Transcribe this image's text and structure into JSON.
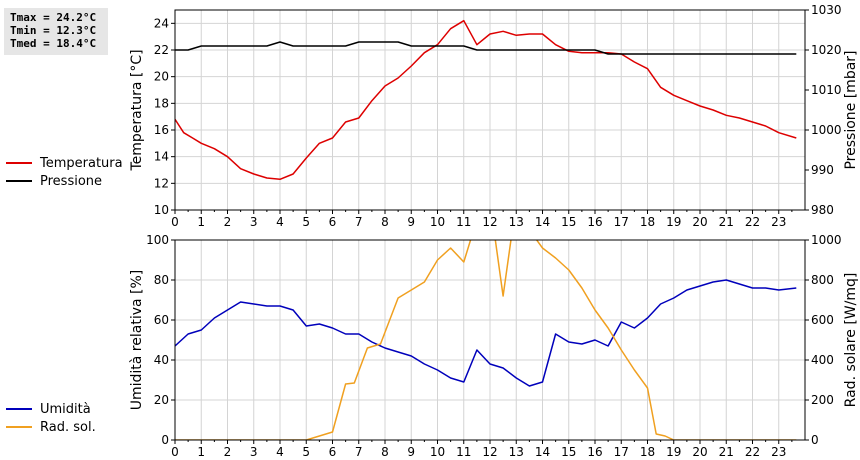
{
  "stats": {
    "tmax": "Tmax = 24.2°C",
    "tmin": "Tmin = 12.3°C",
    "tmed": "Tmed = 18.4°C"
  },
  "colors": {
    "temperatura": "#dd0000",
    "pressione": "#000000",
    "umidita": "#0000bb",
    "rad_sol": "#f0a020"
  },
  "chart_data": [
    {
      "type": "line",
      "xlim": [
        0,
        24
      ],
      "x_ticks": [
        "0",
        "1",
        "2",
        "3",
        "4",
        "5",
        "6",
        "7",
        "8",
        "9",
        "10",
        "11",
        "12",
        "13",
        "14",
        "15",
        "16",
        "17",
        "18",
        "19",
        "20",
        "21",
        "22",
        "23"
      ],
      "ylabel": "Temperatura [°C]",
      "ylim": [
        10,
        25
      ],
      "y_ticks": [
        "10",
        "12",
        "14",
        "16",
        "18",
        "20",
        "22",
        "24"
      ],
      "y2label": "Pressione [mbar]",
      "y2lim": [
        980,
        1030
      ],
      "y2_ticks": [
        "980",
        "990",
        "1000",
        "1010",
        "1020",
        "1030"
      ],
      "grid": true,
      "legend_position": "left",
      "series": [
        {
          "name": "Temperatura",
          "axis": "left",
          "x": [
            0,
            0.33,
            0.67,
            1,
            1.5,
            2,
            2.5,
            3,
            3.5,
            4,
            4.5,
            5,
            5.5,
            6,
            6.5,
            7,
            7.5,
            8,
            8.5,
            9,
            9.5,
            10,
            10.5,
            11,
            11.5,
            12,
            12.5,
            13,
            13.5,
            14,
            14.5,
            15,
            15.5,
            16,
            16.5,
            17,
            17.5,
            18,
            18.5,
            19,
            19.5,
            20,
            20.5,
            21,
            21.5,
            22,
            22.5,
            23,
            23.67
          ],
          "values": [
            16.8,
            15.8,
            15.4,
            15.0,
            14.6,
            14.0,
            13.1,
            12.7,
            12.4,
            12.3,
            12.7,
            13.9,
            15.0,
            15.4,
            16.6,
            16.9,
            18.2,
            19.3,
            19.9,
            20.8,
            21.8,
            22.4,
            23.6,
            24.2,
            22.4,
            23.2,
            23.4,
            23.1,
            23.2,
            23.2,
            22.4,
            21.9,
            21.8,
            21.8,
            21.8,
            21.7,
            21.1,
            20.6,
            19.2,
            18.6,
            18.2,
            17.8,
            17.5,
            17.1,
            16.9,
            16.6,
            16.3,
            15.8,
            15.4
          ]
        },
        {
          "name": "Pressione",
          "axis": "right",
          "x": [
            0,
            0.5,
            1,
            1.5,
            2,
            2.5,
            3,
            3.5,
            4,
            4.5,
            5,
            5.5,
            6,
            6.5,
            7,
            7.5,
            8,
            8.5,
            9,
            9.5,
            10,
            10.5,
            11,
            11.5,
            12,
            12.5,
            13,
            13.5,
            14,
            14.5,
            15,
            15.5,
            16,
            16.5,
            17,
            17.5,
            18,
            18.5,
            19,
            19.5,
            20,
            20.5,
            21,
            21.5,
            22,
            22.5,
            23,
            23.67
          ],
          "values": [
            1020,
            1020,
            1021,
            1021,
            1021,
            1021,
            1021,
            1021,
            1022,
            1021,
            1021,
            1021,
            1021,
            1021,
            1022,
            1022,
            1022,
            1022,
            1021,
            1021,
            1021,
            1021,
            1021,
            1020,
            1020,
            1020,
            1020,
            1020,
            1020,
            1020,
            1020,
            1020,
            1020,
            1019,
            1019,
            1019,
            1019,
            1019,
            1019,
            1019,
            1019,
            1019,
            1019,
            1019,
            1019,
            1019,
            1019,
            1019
          ]
        }
      ]
    },
    {
      "type": "line",
      "xlim": [
        0,
        24
      ],
      "x_ticks": [
        "0",
        "1",
        "2",
        "3",
        "4",
        "5",
        "6",
        "7",
        "8",
        "9",
        "10",
        "11",
        "12",
        "13",
        "14",
        "15",
        "16",
        "17",
        "18",
        "19",
        "20",
        "21",
        "22",
        "23"
      ],
      "ylabel": "Umidità relativa [%]",
      "ylim": [
        0,
        100
      ],
      "y_ticks": [
        "0",
        "20",
        "40",
        "60",
        "80",
        "100"
      ],
      "y2label": "Rad. solare [W/mq]",
      "y2lim": [
        0,
        1000
      ],
      "y2_ticks": [
        "0",
        "200",
        "400",
        "600",
        "800",
        "1000"
      ],
      "grid": true,
      "legend_position": "left",
      "series": [
        {
          "name": "Umidità",
          "axis": "left",
          "x": [
            0,
            0.5,
            1,
            1.5,
            2,
            2.5,
            3,
            3.5,
            4,
            4.5,
            5,
            5.5,
            6,
            6.5,
            7,
            7.5,
            8,
            8.5,
            9,
            9.5,
            10,
            10.5,
            11,
            11.5,
            12,
            12.5,
            13,
            13.5,
            14,
            14.5,
            15,
            15.5,
            16,
            16.5,
            17,
            17.5,
            18,
            18.5,
            19,
            19.5,
            20,
            20.5,
            21,
            21.5,
            22,
            22.5,
            23,
            23.67
          ],
          "values": [
            47,
            53,
            55,
            61,
            65,
            69,
            68,
            67,
            67,
            65,
            57,
            58,
            56,
            53,
            53,
            49,
            46,
            44,
            42,
            38,
            35,
            31,
            29,
            45,
            38,
            36,
            31,
            27,
            29,
            53,
            49,
            48,
            50,
            47,
            59,
            56,
            61,
            68,
            71,
            75,
            77,
            79,
            80,
            78,
            76,
            76,
            75,
            76
          ]
        },
        {
          "name": "Rad. sol.",
          "axis": "right",
          "x": [
            0,
            1,
            2,
            3,
            4,
            5,
            5.5,
            6,
            6.5,
            6.83,
            7.33,
            7.83,
            8.5,
            9,
            9.5,
            10,
            10.5,
            11,
            11.33,
            12.17,
            12.5,
            12.83,
            13.17,
            13.5,
            14,
            14.5,
            15,
            15.5,
            16,
            16.5,
            17,
            17.5,
            18,
            18.33,
            18.67,
            19,
            19.33,
            20,
            21,
            22,
            23,
            23.67
          ],
          "values": [
            0,
            0,
            0,
            0,
            0,
            0,
            20,
            40,
            280,
            285,
            460,
            480,
            710,
            750,
            790,
            900,
            960,
            890,
            1030,
            1030,
            720,
            1030,
            1030,
            1050,
            960,
            910,
            850,
            760,
            650,
            560,
            450,
            350,
            260,
            30,
            20,
            0,
            0,
            0,
            0,
            0,
            0,
            0
          ]
        }
      ]
    }
  ]
}
